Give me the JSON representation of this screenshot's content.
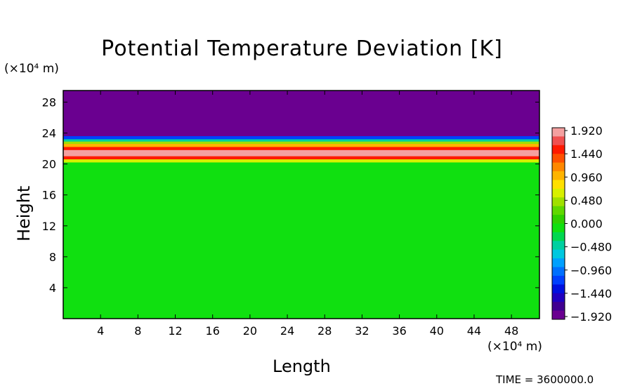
{
  "chart_data": {
    "type": "heatmap",
    "title": "Potential Temperature Deviation [K]",
    "xlabel": "Length",
    "ylabel": "Height",
    "x_unit": "(×10⁴ m)",
    "y_unit": "(×10⁴ m)",
    "xlim": [
      0,
      51
    ],
    "ylim": [
      0,
      29.5
    ],
    "x_ticks": [
      4,
      8,
      12,
      16,
      20,
      24,
      28,
      32,
      36,
      40,
      44,
      48
    ],
    "y_ticks": [
      4,
      8,
      12,
      16,
      20,
      24,
      28
    ],
    "colorbar": {
      "labels": [
        "1.920",
        "1.440",
        "0.960",
        "0.480",
        "0.000",
        "−0.480",
        "−0.960",
        "−1.440",
        "−1.920"
      ],
      "min": -1.92,
      "max": 1.92,
      "colors": [
        "#f4a0a0",
        "#f05050",
        "#ff1a00",
        "#ff5000",
        "#ff8800",
        "#ffb400",
        "#ffe000",
        "#d8f000",
        "#a0e000",
        "#60d800",
        "#30d000",
        "#10e010",
        "#00d850",
        "#00d0a0",
        "#00c8e0",
        "#00a0ff",
        "#0070ff",
        "#0040ff",
        "#0010e0",
        "#2000c0",
        "#400090",
        "#6a0090"
      ]
    },
    "bands": [
      {
        "y_from": 23.6,
        "y_to": 29.5,
        "value": -1.92
      },
      {
        "y_from": 23.2,
        "y_to": 23.6,
        "value": -1.2
      },
      {
        "y_from": 22.9,
        "y_to": 23.2,
        "value": -0.5
      },
      {
        "y_from": 22.6,
        "y_to": 22.9,
        "value": 0.5
      },
      {
        "y_from": 22.2,
        "y_to": 22.6,
        "value": 1.0
      },
      {
        "y_from": 21.8,
        "y_to": 22.2,
        "value": 1.6
      },
      {
        "y_from": 21.0,
        "y_to": 21.8,
        "value": 1.9
      },
      {
        "y_from": 20.6,
        "y_to": 21.0,
        "value": 1.5
      },
      {
        "y_from": 20.2,
        "y_to": 20.6,
        "value": 0.6
      },
      {
        "y_from": 0,
        "y_to": 20.2,
        "value": 0.0
      }
    ],
    "time_label": "TIME = 3600000.0"
  }
}
